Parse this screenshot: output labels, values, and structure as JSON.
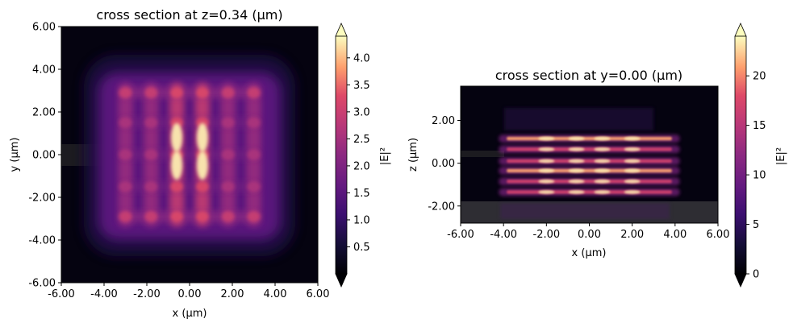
{
  "chart_data": [
    {
      "type": "heatmap",
      "title": "cross section at z=0.34 (µm)",
      "xlabel": "x (µm)",
      "ylabel": "y (µm)",
      "xlim": [
        -6.0,
        6.0
      ],
      "ylim": [
        -6.0,
        6.0
      ],
      "xticks": [
        "-6.00",
        "-4.00",
        "-2.00",
        "0.00",
        "2.00",
        "4.00",
        "6.00"
      ],
      "yticks": [
        "-6.00",
        "-4.00",
        "-2.00",
        "0.00",
        "2.00",
        "4.00",
        "6.00"
      ],
      "colorbar": {
        "label": "|E|²",
        "range": [
          0.0,
          4.4
        ],
        "ticks": [
          "0.5",
          "1.0",
          "1.5",
          "2.0",
          "2.5",
          "3.0",
          "3.5",
          "4.0"
        ],
        "extend": "both",
        "colormap": "magma"
      },
      "field_features": {
        "grid_region_x": [
          -3.3,
          3.3
        ],
        "grid_region_y": [
          -3.6,
          3.6
        ],
        "bright_columns_x": [
          -3.0,
          -1.8,
          -0.6,
          0.6,
          1.8,
          3.0
        ],
        "bright_rows_y": [
          -2.9,
          -1.5,
          0.0,
          1.5,
          2.9
        ],
        "peak_value": 4.3,
        "peak_locations": [
          [
            -0.6,
            0.8
          ],
          [
            -0.6,
            -0.5
          ],
          [
            0.6,
            0.8
          ],
          [
            0.6,
            -0.5
          ]
        ],
        "input_waveguide": {
          "x": [
            -6.0,
            -4.0
          ],
          "y": [
            -0.5,
            0.5
          ]
        }
      }
    },
    {
      "type": "heatmap",
      "title": "cross section at y=0.00 (µm)",
      "xlabel": "x (µm)",
      "ylabel": "z (µm)",
      "xlim": [
        -6.0,
        6.0
      ],
      "ylim": [
        -2.8,
        3.6
      ],
      "xticks": [
        "-6.00",
        "-4.00",
        "-2.00",
        "0.00",
        "2.00",
        "4.00",
        "6.00"
      ],
      "yticks": [
        "-2.00",
        "0.00",
        "2.00"
      ],
      "colorbar": {
        "label": "|E|²",
        "range": [
          0.0,
          24.0
        ],
        "ticks": [
          "0",
          "5",
          "10",
          "15",
          "20"
        ],
        "extend": "both",
        "colormap": "magma"
      },
      "field_features": {
        "bright_layers_z": [
          1.15,
          0.65,
          0.1,
          -0.35,
          -0.85,
          -1.35
        ],
        "layer_x_extent": [
          -4.0,
          4.0
        ],
        "peak_value": 23.5,
        "substrate_z": [
          -2.8,
          -1.8
        ]
      }
    }
  ]
}
